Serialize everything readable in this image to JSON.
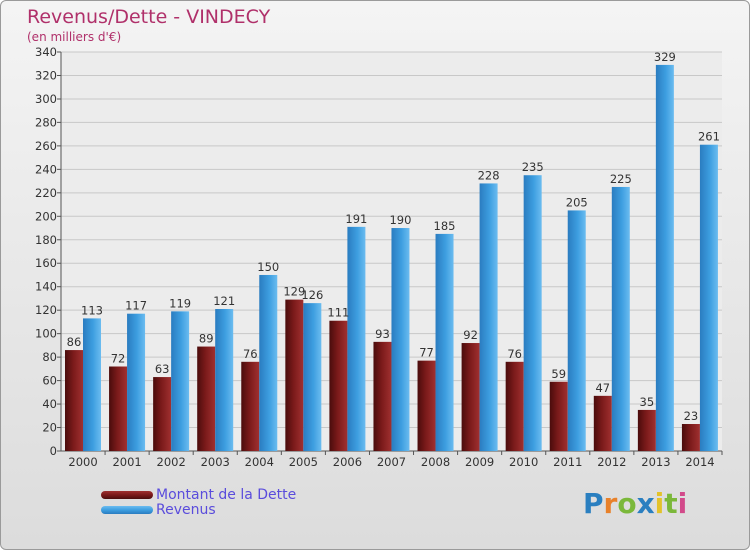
{
  "header": {
    "title": "Revenus/Dette - VINDECY",
    "subtitle": "(en milliers d'€)"
  },
  "legend": {
    "debt_label": "Montant de la Dette",
    "revenue_label": "Revenus"
  },
  "logo": {
    "text": "Proxiti",
    "letters": [
      "P",
      "r",
      "o",
      "x",
      "i",
      "t",
      "i"
    ],
    "colors": [
      "#2a7fc0",
      "#e8812a",
      "#7bb83a",
      "#2a7fc0",
      "#e3c22a",
      "#7bb83a",
      "#d24a8a"
    ]
  },
  "colors": {
    "debt": "#7a1a1a",
    "revenue": "#3d9ee0",
    "title": "#b0306a",
    "legend_text": "#5a4cdc"
  },
  "chart_data": {
    "type": "bar",
    "title": "Revenus/Dette - VINDECY",
    "subtitle": "(en milliers d'€)",
    "xlabel": "",
    "ylabel": "",
    "ylim": [
      0,
      340
    ],
    "ytick_step": 20,
    "yticks": [
      "0",
      "20",
      "40",
      "60",
      "80",
      "100",
      "120",
      "140",
      "160",
      "180",
      "200",
      "220",
      "240",
      "260",
      "280",
      "300",
      "320",
      "340"
    ],
    "grid": true,
    "categories": [
      "2000",
      "2001",
      "2002",
      "2003",
      "2004",
      "2005",
      "2006",
      "2007",
      "2008",
      "2009",
      "2010",
      "2011",
      "2012",
      "2013",
      "2014"
    ],
    "series": [
      {
        "name": "Montant de la Dette",
        "values": [
          86,
          72,
          63,
          89,
          76,
          129,
          111,
          93,
          77,
          92,
          76,
          59,
          47,
          35,
          23
        ]
      },
      {
        "name": "Revenus",
        "values": [
          113,
          117,
          119,
          121,
          150,
          126,
          191,
          190,
          185,
          228,
          235,
          205,
          225,
          329,
          261
        ]
      }
    ],
    "legend_position": "bottom-left"
  }
}
